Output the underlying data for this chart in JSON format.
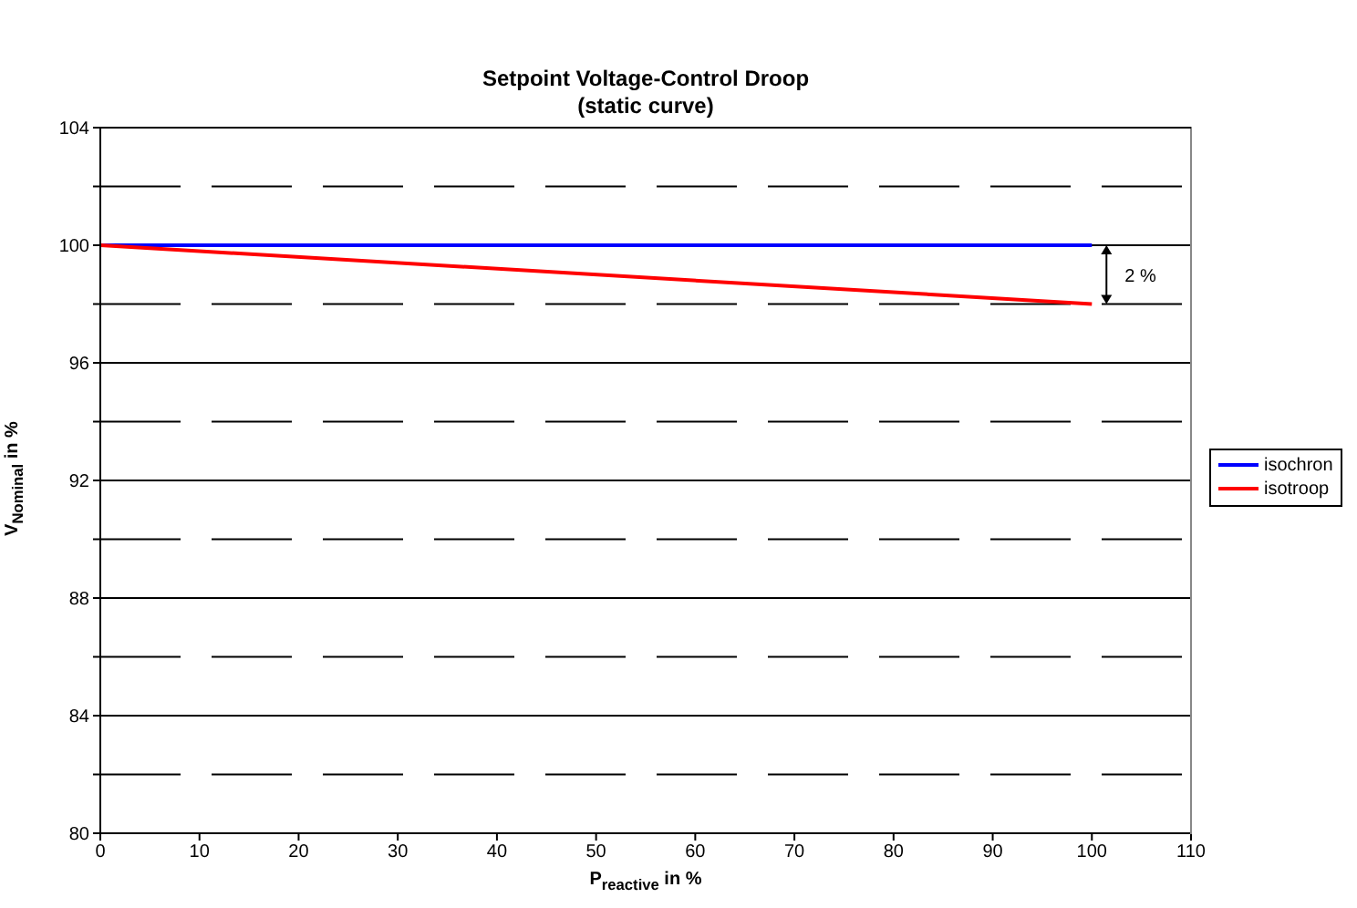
{
  "chart_data": {
    "type": "line",
    "title": "Setpoint Voltage-Control Droop (static curve)",
    "xlabel": "P$_{reactive}$ in %",
    "ylabel": "V$_{Nominal}$ in %",
    "x": [
      0,
      100
    ],
    "series": [
      {
        "name": "isochron",
        "color": "#0000ff",
        "values": [
          100,
          100
        ]
      },
      {
        "name": "isotroop",
        "color": "#ff0000",
        "values": [
          100,
          98
        ]
      }
    ],
    "xlim": [
      0,
      110
    ],
    "xticks": [
      0,
      10,
      20,
      30,
      40,
      50,
      60,
      70,
      80,
      90,
      100,
      110
    ],
    "ylim": [
      80,
      104
    ],
    "yticks": [
      80,
      {
        "value": 82,
        "label": null
      },
      84,
      {
        "value": 86,
        "label": null
      },
      88,
      {
        "value": 90,
        "label": null
      },
      92,
      {
        "value": 94,
        "label": null
      },
      96,
      {
        "value": 98,
        "label": null
      },
      100,
      {
        "value": 102,
        "label": null
      },
      104
    ],
    "grid": "y",
    "legend": "right",
    "marker": "none",
    "line_style": "solid",
    "annotations": [
      "2 %"
    ]
  }
}
